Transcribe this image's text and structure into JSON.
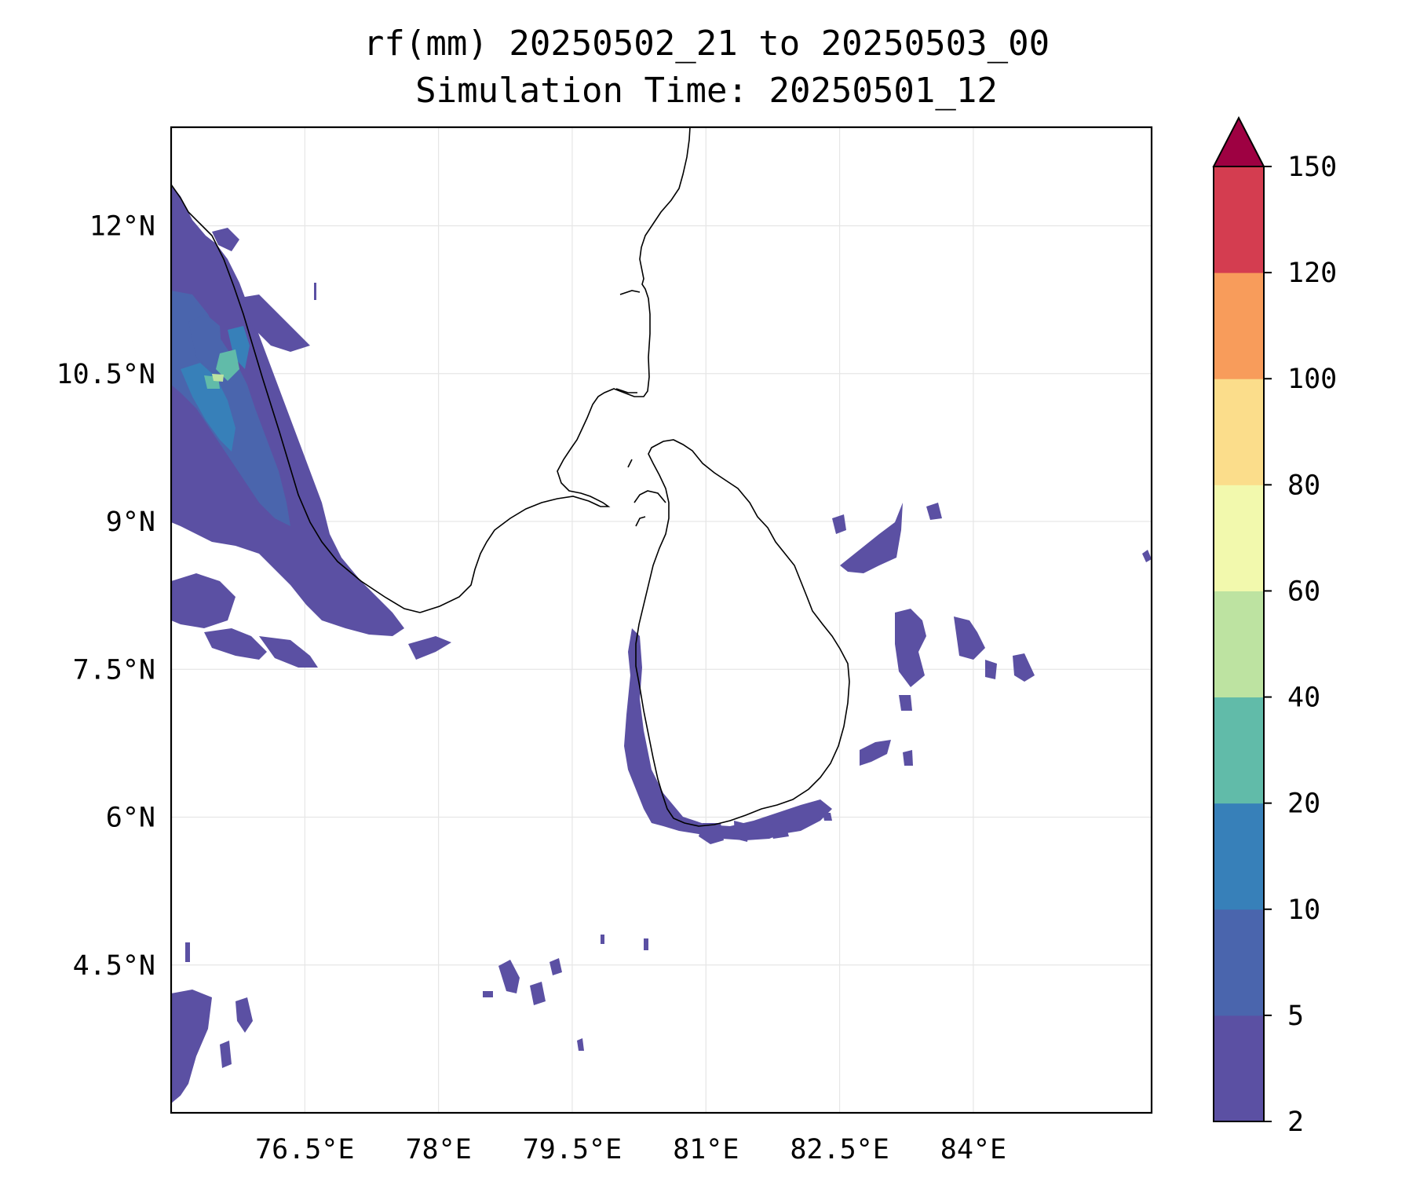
{
  "title": {
    "line1": "rf(mm) 20250502_21 to 20250503_00",
    "line2": "Simulation Time: 20250501_12"
  },
  "map": {
    "lon_range": [
      75.0,
      86.0
    ],
    "lat_range": [
      3.0,
      13.0
    ],
    "lon_ticks": [
      {
        "value": 76.5,
        "label": "76.5°E"
      },
      {
        "value": 78.0,
        "label": "78°E"
      },
      {
        "value": 79.5,
        "label": "79.5°E"
      },
      {
        "value": 81.0,
        "label": "81°E"
      },
      {
        "value": 82.5,
        "label": "82.5°E"
      },
      {
        "value": 84.0,
        "label": "84°E"
      }
    ],
    "lat_ticks": [
      {
        "value": 12.0,
        "label": "12°N"
      },
      {
        "value": 10.5,
        "label": "10.5°N"
      },
      {
        "value": 9.0,
        "label": "9°N"
      },
      {
        "value": 7.5,
        "label": "7.5°N"
      },
      {
        "value": 6.0,
        "label": "6°N"
      },
      {
        "value": 4.5,
        "label": "4.5°N"
      }
    ],
    "grid": true
  },
  "colorbar": {
    "levels": [
      {
        "label": "2",
        "color": "#5b50a3"
      },
      {
        "label": "5",
        "color": "#4a65ad"
      },
      {
        "label": "10",
        "color": "#3780b9"
      },
      {
        "label": "20",
        "color": "#61bba9"
      },
      {
        "label": "40",
        "color": "#bde3a1"
      },
      {
        "label": "60",
        "color": "#f2f9ad"
      },
      {
        "label": "80",
        "color": "#fbdd8b"
      },
      {
        "label": "100",
        "color": "#f89c5b"
      },
      {
        "label": "120",
        "color": "#d43d50"
      },
      {
        "label": "150",
        "color": "#9e0142"
      }
    ],
    "extend": "max"
  }
}
